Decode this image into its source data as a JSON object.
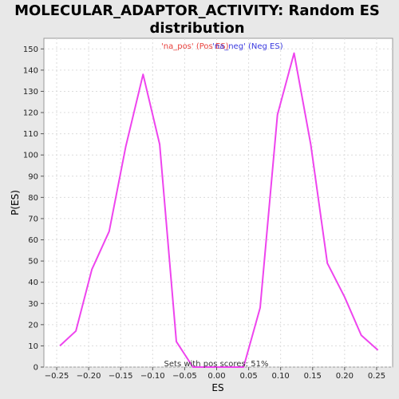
{
  "chart_data": {
    "type": "line",
    "title_lines": [
      "MOLECULAR_ADAPTOR_ACTIVITY: Random ES",
      "distribution"
    ],
    "xlabel": "ES",
    "ylabel": "P(ES)",
    "xlim": [
      -0.27,
      0.275
    ],
    "ylim": [
      0,
      155
    ],
    "xticks": [
      -0.25,
      -0.2,
      -0.15,
      -0.1,
      -0.05,
      0.0,
      0.05,
      0.1,
      0.15,
      0.2,
      0.25
    ],
    "xtick_labels": [
      "−0.25",
      "−0.20",
      "−0.15",
      "−0.10",
      "−0.05",
      "0.00",
      "0.05",
      "0.10",
      "0.15",
      "0.20",
      "0.25"
    ],
    "yticks": [
      0,
      10,
      20,
      30,
      40,
      50,
      60,
      70,
      80,
      90,
      100,
      110,
      120,
      130,
      140,
      150
    ],
    "grid": true,
    "legend": [
      {
        "label": "'na_pos' (Pos ES)",
        "color": "#e8403c"
      },
      {
        "label": "'na_neg' (Neg ES)",
        "color": "#3a3ae0"
      }
    ],
    "annotation": "Sets with pos scores: 51%",
    "series": [
      {
        "color": "#ee44ee",
        "x": [
          -0.245,
          -0.22,
          -0.195,
          -0.168,
          -0.142,
          -0.115,
          -0.089,
          -0.063,
          -0.037,
          -0.011,
          0.015,
          0.042,
          0.068,
          0.095,
          0.121,
          0.147,
          0.173,
          0.2,
          0.226,
          0.252
        ],
        "y": [
          10,
          17,
          46,
          64,
          104,
          138,
          105,
          12,
          0,
          0,
          0,
          0,
          28,
          119,
          148,
          105,
          49,
          33,
          15,
          8
        ]
      }
    ]
  }
}
